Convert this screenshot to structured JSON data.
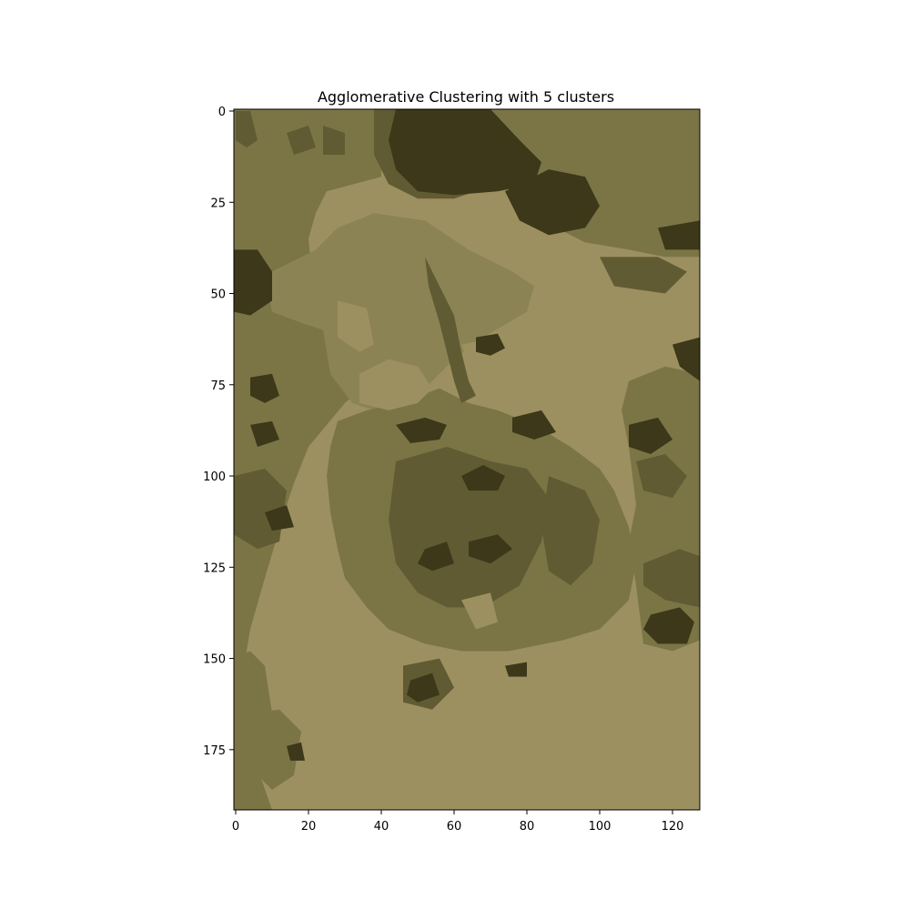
{
  "chart_data": {
    "type": "heatmap",
    "title": "Agglomerative Clustering with 5 clusters",
    "xlabel": "",
    "ylabel": "",
    "image_width": 128,
    "image_height": 192,
    "xlim": [
      -0.5,
      127.5
    ],
    "ylim": [
      191.5,
      -0.5
    ],
    "x_ticks": [
      0,
      20,
      40,
      60,
      80,
      100,
      120
    ],
    "y_ticks": [
      0,
      25,
      50,
      75,
      100,
      125,
      150,
      175
    ],
    "cluster_colors": [
      "#3c3819",
      "#605b33",
      "#7b7546",
      "#8b8354",
      "#9d9060"
    ],
    "grid": false,
    "legend": "none"
  }
}
